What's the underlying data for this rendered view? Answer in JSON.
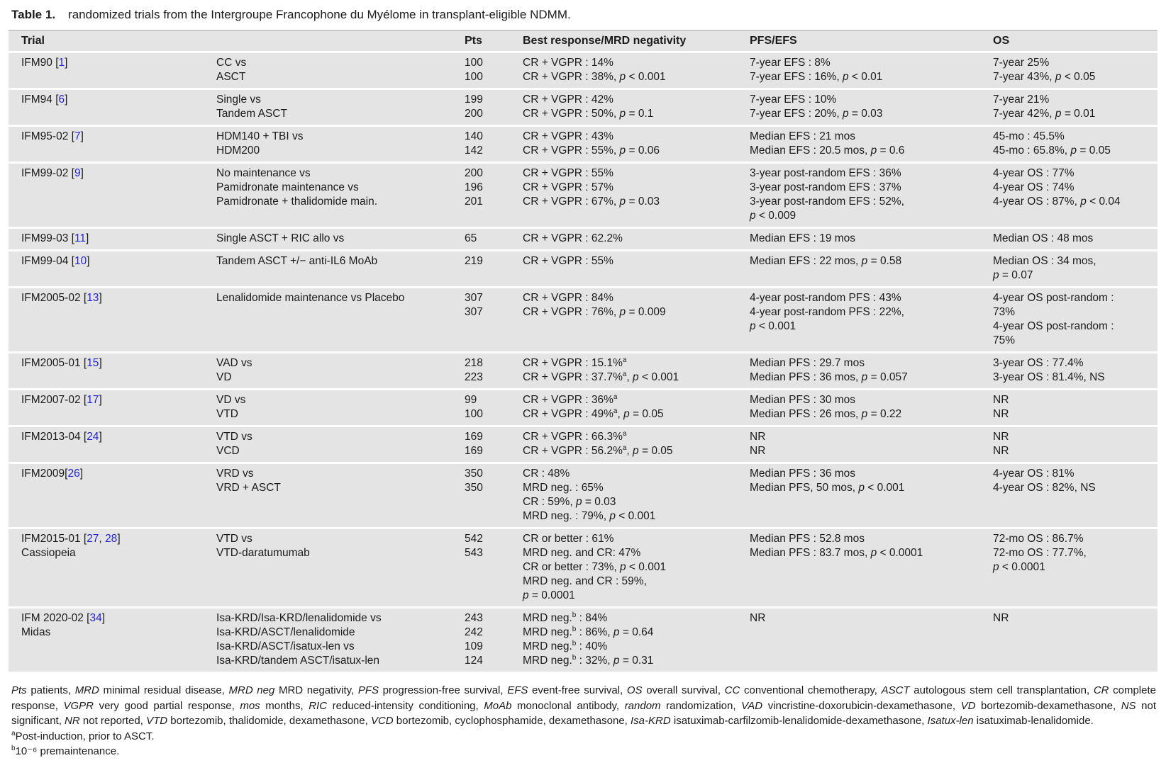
{
  "title": {
    "label": "Table 1.",
    "text": "randomized trials from the Intergroupe Francophone du Myélome in transplant-eligible NDMM."
  },
  "colors": {
    "row_bg": "#e4e4e4",
    "link_blue": "#2424d6",
    "text": "#1b1b1b"
  },
  "table": {
    "headers": [
      "Trial",
      "",
      "Pts",
      "Best response/MRD negativity",
      "PFS/EFS",
      "OS"
    ],
    "rows": [
      {
        "trial": "IFM90",
        "refs": [
          "1"
        ],
        "sub": "",
        "arms": [
          "CC vs",
          "ASCT"
        ],
        "pts": [
          "100",
          "100"
        ],
        "response": [
          "CR + VGPR : 14%",
          "CR + VGPR : 38%, p < 0.001"
        ],
        "pfs_efs": [
          "7-year EFS : 8%",
          "7-year EFS : 16%, p < 0.01"
        ],
        "os": [
          "7-year 25%",
          "7-year 43%, p < 0.05"
        ]
      },
      {
        "trial": "IFM94",
        "refs": [
          "6"
        ],
        "sub": "",
        "arms": [
          "Single vs",
          "Tandem ASCT"
        ],
        "pts": [
          "199",
          "200"
        ],
        "response": [
          "CR + VGPR : 42%",
          "CR + VGPR : 50%, p = 0.1"
        ],
        "pfs_efs": [
          "7-year EFS : 10%",
          "7-year EFS : 20%, p = 0.03"
        ],
        "os": [
          "7-year 21%",
          "7-year 42%, p = 0.01"
        ]
      },
      {
        "trial": "IFM95-02",
        "refs": [
          "7"
        ],
        "sub": "",
        "arms": [
          "HDM140 + TBI vs",
          "HDM200"
        ],
        "pts": [
          "140",
          "142"
        ],
        "response": [
          "CR + VGPR : 43%",
          "CR + VGPR : 55%, p = 0.06"
        ],
        "pfs_efs": [
          "Median EFS : 21 mos",
          "Median EFS : 20.5 mos, p = 0.6"
        ],
        "os": [
          "45-mo : 45.5%",
          "45-mo : 65.8%, p = 0.05"
        ]
      },
      {
        "trial": "IFM99-02",
        "refs": [
          "9"
        ],
        "sub": "",
        "arms": [
          "No maintenance vs",
          "Pamidronate maintenance vs",
          "Pamidronate + thalidomide main."
        ],
        "pts": [
          "200",
          "196",
          "201"
        ],
        "response": [
          "CR + VGPR : 55%",
          "CR + VGPR : 57%",
          "CR + VGPR : 67%, p = 0.03"
        ],
        "pfs_efs": [
          "3-year post-random EFS : 36%",
          "3-year post-random EFS : 37%",
          "3-year post-random EFS : 52%,",
          "p < 0.009"
        ],
        "os": [
          "4-year OS : 77%",
          "4-year OS : 74%",
          "4-year OS : 87%, p < 0.04"
        ]
      },
      {
        "trial": "IFM99-03",
        "refs": [
          "11"
        ],
        "sub": "",
        "arms": [
          "Single ASCT + RIC allo vs"
        ],
        "pts": [
          "65"
        ],
        "response": [
          "CR + VGPR : 62.2%"
        ],
        "pfs_efs": [
          "Median EFS : 19 mos"
        ],
        "os": [
          "Median OS : 48 mos"
        ]
      },
      {
        "trial": "IFM99-04",
        "refs": [
          "10"
        ],
        "sub": "",
        "arms": [
          "Tandem ASCT +/− anti-IL6 MoAb"
        ],
        "pts": [
          "219"
        ],
        "response": [
          "CR + VGPR : 55%"
        ],
        "pfs_efs": [
          "Median EFS : 22 mos, p = 0.58"
        ],
        "os": [
          "Median OS : 34 mos,",
          "p = 0.07"
        ]
      },
      {
        "trial": "IFM2005-02",
        "refs": [
          "13"
        ],
        "sub": "",
        "arms": [
          "Lenalidomide maintenance vs Placebo"
        ],
        "pts": [
          "307",
          "307"
        ],
        "response": [
          "CR + VGPR : 84%",
          "CR + VGPR : 76%, p = 0.009"
        ],
        "pfs_efs": [
          "4-year post-random PFS : 43%",
          "4-year post-random PFS : 22%,",
          "p < 0.001"
        ],
        "os": [
          "4-year OS post-random :",
          "73%",
          "4-year OS post-random :",
          "75%"
        ]
      },
      {
        "trial": "IFM2005-01",
        "refs": [
          "15"
        ],
        "sub": "",
        "arms": [
          "VAD vs",
          "VD"
        ],
        "pts": [
          "218",
          "223"
        ],
        "response": [
          "CR + VGPR : 15.1%^a",
          "CR + VGPR : 37.7%^a, p < 0.001"
        ],
        "pfs_efs": [
          "Median PFS : 29.7 mos",
          "Median PFS : 36 mos, p = 0.057"
        ],
        "os": [
          "3-year OS : 77.4%",
          "3-year OS : 81.4%, NS"
        ]
      },
      {
        "trial": "IFM2007-02",
        "refs": [
          "17"
        ],
        "sub": "",
        "arms": [
          "VD vs",
          "VTD"
        ],
        "pts": [
          "99",
          "100"
        ],
        "response": [
          "CR + VGPR : 36%^a",
          "CR + VGPR : 49%^a, p = 0.05"
        ],
        "pfs_efs": [
          "Median PFS : 30 mos",
          "Median PFS : 26 mos, p = 0.22"
        ],
        "os": [
          "NR",
          "NR"
        ]
      },
      {
        "trial": "IFM2013-04",
        "refs": [
          "24"
        ],
        "sub": "",
        "arms": [
          "VTD vs",
          "VCD"
        ],
        "pts": [
          "169",
          "169"
        ],
        "response": [
          "CR + VGPR : 66.3%^a",
          "CR + VGPR : 56.2%^a, p = 0.05"
        ],
        "pfs_efs": [
          "NR",
          "NR"
        ],
        "os": [
          "NR",
          "NR"
        ]
      },
      {
        "trial": "IFM2009",
        "refs": [
          "26"
        ],
        "sub": "",
        "ref_spaced": false,
        "arms": [
          "VRD vs",
          "VRD + ASCT"
        ],
        "pts": [
          "350",
          "350"
        ],
        "response": [
          "CR : 48%",
          "MRD neg. : 65%",
          "CR : 59%, p = 0.03",
          "MRD neg. : 79%, p < 0.001"
        ],
        "pfs_efs": [
          "Median PFS : 36 mos",
          "Median PFS, 50 mos, p < 0.001"
        ],
        "os": [
          "4-year OS : 81%",
          "4-year OS : 82%, NS"
        ]
      },
      {
        "trial": "IFM2015-01",
        "refs": [
          "27",
          "28"
        ],
        "sub": "Cassiopeia",
        "arms": [
          "VTD vs",
          "VTD-daratumumab"
        ],
        "pts": [
          "542",
          "543"
        ],
        "response": [
          "CR or better : 61%",
          "MRD neg. and CR: 47%",
          "CR or better : 73%, p < 0.001",
          "MRD neg. and CR : 59%,",
          "p = 0.0001"
        ],
        "pfs_efs": [
          "Median PFS : 52.8 mos",
          "Median PFS : 83.7 mos, p < 0.0001"
        ],
        "os": [
          "72-mo OS : 86.7%",
          "72-mo OS : 77.7%,",
          "p < 0.0001"
        ]
      },
      {
        "trial": "IFM 2020-02",
        "refs": [
          "34"
        ],
        "sub": "Midas",
        "arms": [
          "Isa-KRD/Isa-KRD/lenalidomide vs",
          "Isa-KRD/ASCT/lenalidomide",
          "Isa-KRD/ASCT/isatux-len vs",
          "Isa-KRD/tandem ASCT/isatux-len"
        ],
        "pts": [
          "243",
          "242",
          "109",
          "124"
        ],
        "response": [
          "MRD neg.^b : 84%",
          "MRD neg.^b : 86%, p = 0.64",
          "MRD neg.^b : 40%",
          "MRD neg.^b : 32%, p = 0.31"
        ],
        "pfs_efs": [
          "NR"
        ],
        "os": [
          "NR"
        ]
      }
    ]
  },
  "footnotes": {
    "abbreviations": [
      {
        "term": "Pts",
        "def": "patients"
      },
      {
        "term": "MRD",
        "def": "minimal residual disease"
      },
      {
        "term": "MRD neg",
        "def": "MRD negativity"
      },
      {
        "term": "PFS",
        "def": "progression-free survival"
      },
      {
        "term": "EFS",
        "def": "event-free survival"
      },
      {
        "term": "OS",
        "def": "overall survival"
      },
      {
        "term": "CC",
        "def": "conventional chemotherapy"
      },
      {
        "term": "ASCT",
        "def": "autologous stem cell transplantation"
      },
      {
        "term": "CR",
        "def": "complete response"
      },
      {
        "term": "VGPR",
        "def": "very good partial response"
      },
      {
        "term": "mos",
        "def": "months"
      },
      {
        "term": "RIC",
        "def": "reduced-intensity conditioning"
      },
      {
        "term": "MoAb",
        "def": "monoclonal antibody"
      },
      {
        "term": "random",
        "def": "randomization"
      },
      {
        "term": "VAD",
        "def": "vincristine-doxorubicin-dexamethasone"
      },
      {
        "term": "VD",
        "def": "bortezomib-dexamethasone"
      },
      {
        "term": "NS",
        "def": "not significant"
      },
      {
        "term": "NR",
        "def": "not reported"
      },
      {
        "term": "VTD",
        "def": "bortezomib, thalidomide, dexamethasone"
      },
      {
        "term": "VCD",
        "def": "bortezomib, cyclophosphamide, dexamethasone"
      },
      {
        "term": "Isa-KRD",
        "def": "isatuximab-carfilzomib-lenalidomide-dexamethasone"
      },
      {
        "term": "Isatux-len",
        "def": "isatuximab-lenalidomide"
      }
    ],
    "a": {
      "marker": "a",
      "text": "Post-induction, prior to ASCT."
    },
    "b": {
      "marker": "b",
      "text": "10⁻⁶ premaintenance."
    }
  }
}
